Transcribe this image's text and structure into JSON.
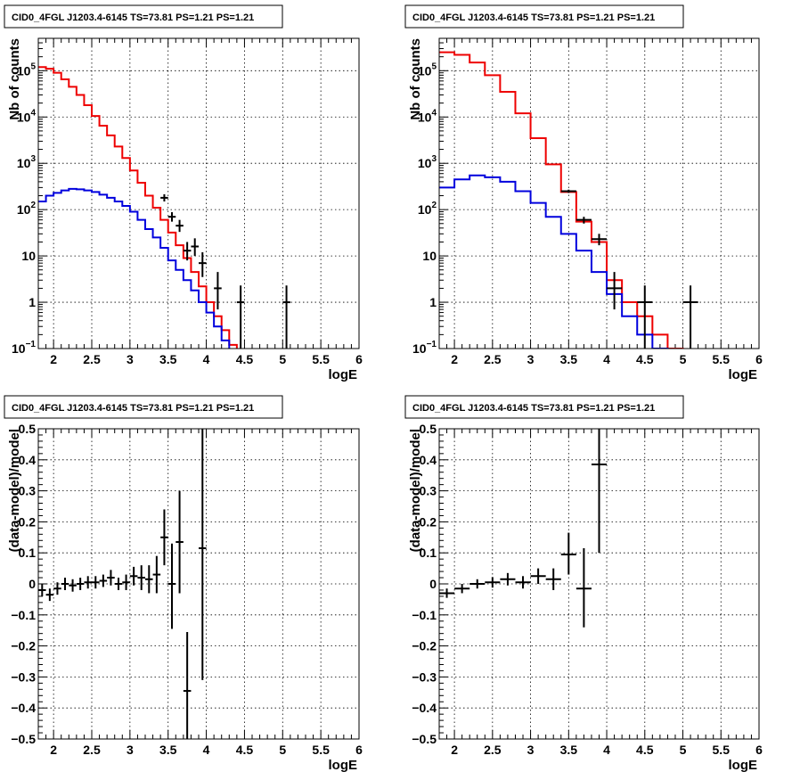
{
  "colors": {
    "data": "#000000",
    "model_total": "#ee0000",
    "model_source": "#0000dd"
  },
  "chart_data": [
    {
      "id": "counts-left",
      "type": "line",
      "title": "CID0_4FGL J1203.4-6145 TS=73.81 PS=1.21 PS=1.21",
      "xlabel": "logE",
      "ylabel": "Nb of counts",
      "log_y": true,
      "xlim": [
        1.8,
        6.0
      ],
      "ylim": [
        0.1,
        500000
      ],
      "grid": true,
      "x_ticks": [
        2,
        2.5,
        3,
        3.5,
        4,
        4.5,
        5,
        5.5,
        6
      ],
      "x_tick_labels": [
        "2",
        "2.5",
        "3",
        "3.5",
        "4",
        "4.5",
        "5",
        "5.5",
        "6"
      ],
      "y_ticks": [
        0.1,
        1,
        10,
        100,
        1000,
        10000,
        100000
      ],
      "y_tick_labels": [
        {
          "base": "10",
          "exp": "−1"
        },
        {
          "base": "1",
          "exp": ""
        },
        {
          "base": "10",
          "exp": ""
        },
        {
          "base": "10",
          "exp": "2"
        },
        {
          "base": "10",
          "exp": "3"
        },
        {
          "base": "10",
          "exp": "4"
        },
        {
          "base": "10",
          "exp": "5"
        }
      ],
      "bin_edges": [
        1.8,
        1.9,
        2.0,
        2.1,
        2.2,
        2.3,
        2.4,
        2.5,
        2.6,
        2.7,
        2.8,
        2.9,
        3.0,
        3.1,
        3.2,
        3.3,
        3.4,
        3.5,
        3.6,
        3.7,
        3.8,
        3.9,
        4.0,
        4.1,
        4.2,
        4.3,
        4.4,
        4.5,
        4.6,
        4.7,
        4.8,
        4.9,
        5.0,
        5.1,
        5.2,
        5.3,
        5.4,
        5.5,
        5.6,
        5.7,
        5.8,
        5.9,
        6.0
      ],
      "series": [
        {
          "role": "model_total",
          "values": [
            120000,
            110000,
            90000,
            65000,
            45000,
            30000,
            18000,
            10500,
            6500,
            4000,
            2300,
            1300,
            700,
            380,
            200,
            110,
            60,
            32,
            17,
            9,
            4.5,
            2.2,
            1.0,
            0.5,
            0.25,
            0.12,
            0,
            0,
            0,
            0,
            0,
            0,
            0,
            0,
            0,
            0,
            0,
            0,
            0,
            0,
            0,
            0
          ]
        },
        {
          "role": "model_source",
          "values": [
            150,
            200,
            230,
            260,
            280,
            275,
            260,
            240,
            210,
            180,
            150,
            120,
            90,
            60,
            38,
            25,
            15,
            8,
            5,
            3,
            1.8,
            1.0,
            0.6,
            0.3,
            0.15,
            0,
            0,
            0,
            0,
            0,
            0,
            0,
            0,
            0,
            0,
            0,
            0,
            0,
            0,
            0,
            0,
            0
          ]
        }
      ],
      "points": [
        {
          "x": 3.45,
          "y": 180,
          "xerr": 0.05,
          "ylo": 150,
          "yhi": 215
        },
        {
          "x": 3.55,
          "y": 70,
          "xerr": 0.05,
          "ylo": 55,
          "yhi": 88
        },
        {
          "x": 3.65,
          "y": 45,
          "xerr": 0.05,
          "ylo": 33,
          "yhi": 60
        },
        {
          "x": 3.75,
          "y": 13,
          "xerr": 0.05,
          "ylo": 8,
          "yhi": 20
        },
        {
          "x": 3.85,
          "y": 16,
          "xerr": 0.05,
          "ylo": 10,
          "yhi": 24
        },
        {
          "x": 3.95,
          "y": 7,
          "xerr": 0.05,
          "ylo": 3.5,
          "yhi": 12
        },
        {
          "x": 4.15,
          "y": 2,
          "xerr": 0.05,
          "ylo": 0.7,
          "yhi": 4.5
        },
        {
          "x": 4.45,
          "y": 1,
          "xerr": 0.05,
          "ylo": 0.1,
          "yhi": 2.3
        },
        {
          "x": 5.05,
          "y": 1,
          "xerr": 0.05,
          "ylo": 0.1,
          "yhi": 2.3
        }
      ]
    },
    {
      "id": "counts-right",
      "type": "line",
      "title": "CID0_4FGL J1203.4-6145 TS=73.81 PS=1.21 PS=1.21",
      "xlabel": "logE",
      "ylabel": "Nb of counts",
      "log_y": true,
      "xlim": [
        1.8,
        6.0
      ],
      "ylim": [
        0.1,
        500000
      ],
      "grid": true,
      "x_ticks": [
        2,
        2.5,
        3,
        3.5,
        4,
        4.5,
        5,
        5.5,
        6
      ],
      "x_tick_labels": [
        "2",
        "2.5",
        "3",
        "3.5",
        "4",
        "4.5",
        "5",
        "5.5",
        "6"
      ],
      "y_ticks": [
        0.1,
        1,
        10,
        100,
        1000,
        10000,
        100000
      ],
      "y_tick_labels": [
        {
          "base": "10",
          "exp": "−1"
        },
        {
          "base": "1",
          "exp": ""
        },
        {
          "base": "10",
          "exp": ""
        },
        {
          "base": "10",
          "exp": "2"
        },
        {
          "base": "10",
          "exp": "3"
        },
        {
          "base": "10",
          "exp": "4"
        },
        {
          "base": "10",
          "exp": "5"
        }
      ],
      "bin_edges": [
        1.8,
        2.0,
        2.2,
        2.4,
        2.6,
        2.8,
        3.0,
        3.2,
        3.4,
        3.6,
        3.8,
        4.0,
        4.2,
        4.4,
        4.6,
        4.8,
        5.0,
        5.2,
        5.4,
        5.6,
        5.8,
        6.0
      ],
      "series": [
        {
          "role": "model_total",
          "values": [
            250000,
            220000,
            150000,
            80000,
            35000,
            12000,
            3500,
            950,
            240,
            55,
            20,
            3.0,
            1.0,
            0.5,
            0.2,
            0.1,
            0,
            0,
            0,
            0,
            0
          ]
        },
        {
          "role": "model_source",
          "values": [
            300,
            450,
            550,
            500,
            400,
            250,
            140,
            70,
            30,
            13,
            4.5,
            1.5,
            0.5,
            0.2,
            0.1,
            0,
            0,
            0,
            0,
            0,
            0
          ]
        }
      ],
      "points": [
        {
          "x": 3.5,
          "y": 250,
          "xerr": 0.1,
          "ylo": 230,
          "yhi": 270
        },
        {
          "x": 3.7,
          "y": 60,
          "xerr": 0.1,
          "ylo": 50,
          "yhi": 70
        },
        {
          "x": 3.9,
          "y": 23,
          "xerr": 0.1,
          "ylo": 17,
          "yhi": 30
        },
        {
          "x": 4.1,
          "y": 2,
          "xerr": 0.1,
          "ylo": 0.7,
          "yhi": 4.5
        },
        {
          "x": 4.5,
          "y": 1,
          "xerr": 0.1,
          "ylo": 0.1,
          "yhi": 2.3
        },
        {
          "x": 5.1,
          "y": 1,
          "xerr": 0.1,
          "ylo": 0.1,
          "yhi": 2.3
        }
      ]
    },
    {
      "id": "residuals-left",
      "type": "scatter",
      "title": "CID0_4FGL J1203.4-6145 TS=73.81 PS=1.21 PS=1.21",
      "xlabel": "logE",
      "ylabel": "(data-model)/model",
      "log_y": false,
      "xlim": [
        1.8,
        6.0
      ],
      "ylim": [
        -0.5,
        0.5
      ],
      "grid": true,
      "x_ticks": [
        2,
        2.5,
        3,
        3.5,
        4,
        4.5,
        5,
        5.5,
        6
      ],
      "x_tick_labels": [
        "2",
        "2.5",
        "3",
        "3.5",
        "4",
        "4.5",
        "5",
        "5.5",
        "6"
      ],
      "y_ticks": [
        -0.5,
        -0.4,
        -0.3,
        -0.2,
        -0.1,
        0,
        0.1,
        0.2,
        0.3,
        0.4,
        0.5
      ],
      "y_tick_labels": [
        {
          "base": "−0.5",
          "exp": ""
        },
        {
          "base": "−0.4",
          "exp": ""
        },
        {
          "base": "−0.3",
          "exp": ""
        },
        {
          "base": "−0.2",
          "exp": ""
        },
        {
          "base": "−0.1",
          "exp": ""
        },
        {
          "base": "0",
          "exp": ""
        },
        {
          "base": "0.1",
          "exp": ""
        },
        {
          "base": "0.2",
          "exp": ""
        },
        {
          "base": "0.3",
          "exp": ""
        },
        {
          "base": "0.4",
          "exp": ""
        },
        {
          "base": "0.5",
          "exp": ""
        }
      ],
      "points": [
        {
          "x": 1.85,
          "y": -0.02,
          "xerr": 0.05,
          "ylo": -0.04,
          "yhi": 0.0
        },
        {
          "x": 1.95,
          "y": -0.035,
          "xerr": 0.05,
          "ylo": -0.055,
          "yhi": -0.015
        },
        {
          "x": 2.05,
          "y": -0.015,
          "xerr": 0.05,
          "ylo": -0.035,
          "yhi": 0.005
        },
        {
          "x": 2.15,
          "y": 0.0,
          "xerr": 0.05,
          "ylo": -0.02,
          "yhi": 0.02
        },
        {
          "x": 2.25,
          "y": -0.005,
          "xerr": 0.05,
          "ylo": -0.025,
          "yhi": 0.015
        },
        {
          "x": 2.35,
          "y": 0.0,
          "xerr": 0.05,
          "ylo": -0.02,
          "yhi": 0.02
        },
        {
          "x": 2.45,
          "y": 0.005,
          "xerr": 0.05,
          "ylo": -0.015,
          "yhi": 0.025
        },
        {
          "x": 2.55,
          "y": 0.005,
          "xerr": 0.05,
          "ylo": -0.015,
          "yhi": 0.025
        },
        {
          "x": 2.65,
          "y": 0.01,
          "xerr": 0.05,
          "ylo": -0.01,
          "yhi": 0.03
        },
        {
          "x": 2.75,
          "y": 0.02,
          "xerr": 0.05,
          "ylo": -0.005,
          "yhi": 0.045
        },
        {
          "x": 2.85,
          "y": 0.0,
          "xerr": 0.05,
          "ylo": -0.02,
          "yhi": 0.02
        },
        {
          "x": 2.95,
          "y": 0.005,
          "xerr": 0.05,
          "ylo": -0.02,
          "yhi": 0.03
        },
        {
          "x": 3.05,
          "y": 0.025,
          "xerr": 0.05,
          "ylo": -0.005,
          "yhi": 0.055
        },
        {
          "x": 3.15,
          "y": 0.02,
          "xerr": 0.05,
          "ylo": -0.02,
          "yhi": 0.06
        },
        {
          "x": 3.25,
          "y": 0.015,
          "xerr": 0.05,
          "ylo": -0.03,
          "yhi": 0.06
        },
        {
          "x": 3.35,
          "y": 0.03,
          "xerr": 0.05,
          "ylo": -0.03,
          "yhi": 0.09
        },
        {
          "x": 3.45,
          "y": 0.15,
          "xerr": 0.05,
          "ylo": 0.06,
          "yhi": 0.24
        },
        {
          "x": 3.55,
          "y": 0.0,
          "xerr": 0.05,
          "ylo": -0.145,
          "yhi": 0.13
        },
        {
          "x": 3.65,
          "y": 0.135,
          "xerr": 0.05,
          "ylo": -0.03,
          "yhi": 0.3
        },
        {
          "x": 3.75,
          "y": -0.345,
          "xerr": 0.05,
          "ylo": -0.5,
          "yhi": -0.155
        },
        {
          "x": 3.95,
          "y": 0.115,
          "xerr": 0.05,
          "ylo": -0.31,
          "yhi": 0.5
        }
      ]
    },
    {
      "id": "residuals-right",
      "type": "scatter",
      "title": "CID0_4FGL J1203.4-6145 TS=73.81 PS=1.21 PS=1.21",
      "xlabel": "logE",
      "ylabel": "(data-model)/model",
      "log_y": false,
      "xlim": [
        1.8,
        6.0
      ],
      "ylim": [
        -0.5,
        0.5
      ],
      "grid": true,
      "x_ticks": [
        2,
        2.5,
        3,
        3.5,
        4,
        4.5,
        5,
        5.5,
        6
      ],
      "x_tick_labels": [
        "2",
        "2.5",
        "3",
        "3.5",
        "4",
        "4.5",
        "5",
        "5.5",
        "6"
      ],
      "y_ticks": [
        -0.5,
        -0.4,
        -0.3,
        -0.2,
        -0.1,
        0,
        0.1,
        0.2,
        0.3,
        0.4,
        0.5
      ],
      "y_tick_labels": [
        {
          "base": "−0.5",
          "exp": ""
        },
        {
          "base": "−0.4",
          "exp": ""
        },
        {
          "base": "−0.3",
          "exp": ""
        },
        {
          "base": "−0.2",
          "exp": ""
        },
        {
          "base": "−0.1",
          "exp": ""
        },
        {
          "base": "0",
          "exp": ""
        },
        {
          "base": "0.1",
          "exp": ""
        },
        {
          "base": "0.2",
          "exp": ""
        },
        {
          "base": "0.3",
          "exp": ""
        },
        {
          "base": "0.4",
          "exp": ""
        },
        {
          "base": "0.5",
          "exp": ""
        }
      ],
      "points": [
        {
          "x": 1.9,
          "y": -0.03,
          "xerr": 0.1,
          "ylo": -0.045,
          "yhi": -0.015
        },
        {
          "x": 2.1,
          "y": -0.015,
          "xerr": 0.1,
          "ylo": -0.03,
          "yhi": 0.0
        },
        {
          "x": 2.3,
          "y": 0.0,
          "xerr": 0.1,
          "ylo": -0.015,
          "yhi": 0.015
        },
        {
          "x": 2.5,
          "y": 0.005,
          "xerr": 0.1,
          "ylo": -0.012,
          "yhi": 0.022
        },
        {
          "x": 2.7,
          "y": 0.015,
          "xerr": 0.1,
          "ylo": -0.005,
          "yhi": 0.035
        },
        {
          "x": 2.9,
          "y": 0.005,
          "xerr": 0.1,
          "ylo": -0.015,
          "yhi": 0.025
        },
        {
          "x": 3.1,
          "y": 0.025,
          "xerr": 0.1,
          "ylo": 0.0,
          "yhi": 0.05
        },
        {
          "x": 3.3,
          "y": 0.015,
          "xerr": 0.1,
          "ylo": -0.02,
          "yhi": 0.05
        },
        {
          "x": 3.5,
          "y": 0.095,
          "xerr": 0.1,
          "ylo": 0.03,
          "yhi": 0.165
        },
        {
          "x": 3.7,
          "y": -0.015,
          "xerr": 0.1,
          "ylo": -0.14,
          "yhi": 0.115
        },
        {
          "x": 3.9,
          "y": 0.385,
          "xerr": 0.1,
          "ylo": 0.1,
          "yhi": 0.5
        }
      ]
    }
  ]
}
